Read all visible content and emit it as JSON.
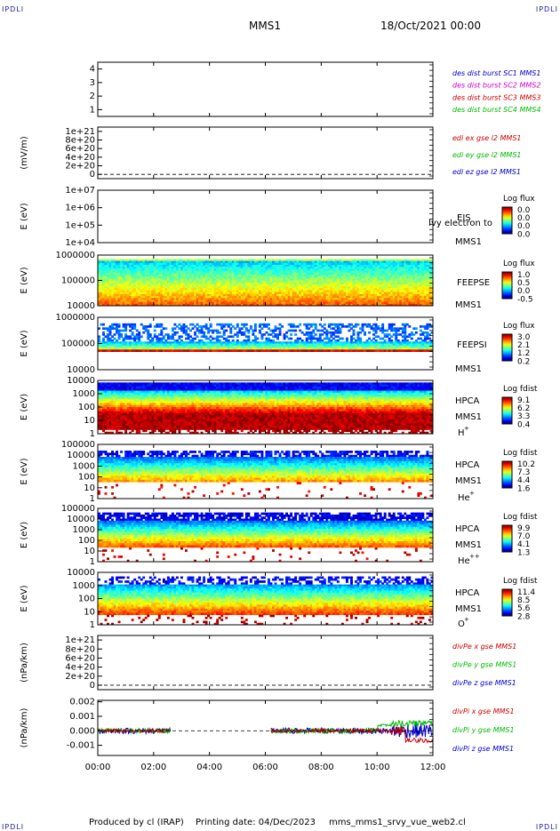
{
  "header": {
    "corner_tl": "IPDLI",
    "corner_tr": "IPDLI",
    "corner_bl": "IPDLI",
    "corner_br": "IPDLI",
    "mission": "MMS1",
    "datetime": "18/Oct/2021 00:00"
  },
  "footer": {
    "produced_by": "Produced by cl (IRAP)",
    "printing_date": "Printing date: 04/Dec/2023",
    "filename": "mms_mms1_srvy_vue_web2.cl"
  },
  "colors": {
    "blue": "#0000cc",
    "magenta": "#cc00cc",
    "red": "#cc0000",
    "green": "#00bb00"
  },
  "chart_data": [
    {
      "type": "line",
      "panel": 0,
      "ylabel": "",
      "yticks": [
        "1",
        "2",
        "3",
        "4"
      ],
      "ylim": [
        0.5,
        4.5
      ],
      "legend": [
        {
          "label": "des dist burst SC1 MMS1",
          "color": "#0000cc"
        },
        {
          "label": "des dist burst SC2 MMS2",
          "color": "#cc00cc"
        },
        {
          "label": "des dist burst SC3 MMS3",
          "color": "#cc0000"
        },
        {
          "label": "des dist burst SC4 MMS4",
          "color": "#00bb00"
        }
      ],
      "series": []
    },
    {
      "type": "line",
      "panel": 1,
      "ylabel": "(mV/m)",
      "yticks": [
        "0",
        "2e+20",
        "4e+20",
        "6e+20",
        "8e+20",
        "1e+21"
      ],
      "ylim": [
        -1e+20,
        1.1e+21
      ],
      "legend": [
        {
          "label": "edi ex gse l2 MMS1",
          "color": "#cc0000"
        },
        {
          "label": "edi ey gse l2 MMS1",
          "color": "#00bb00"
        },
        {
          "label": "edi ez gse l2 MMS1",
          "color": "#0000cc"
        }
      ],
      "zero_line": true
    },
    {
      "type": "heatmap",
      "panel": 2,
      "ylabel": "E (eV)",
      "yticks": [
        "1e+04",
        "1e+05",
        "1e+06",
        "1e+07"
      ],
      "ylog": true,
      "instrument": "EIS",
      "sc": "MMS1",
      "overlay": "Ivy electron to",
      "cbar_title": "Log flux",
      "cbar_ticks": [
        "0.0",
        "0.0",
        "0.0",
        "0.0"
      ],
      "coverage": []
    },
    {
      "type": "heatmap",
      "panel": 3,
      "ylabel": "E (eV)",
      "yticks": [
        "10000",
        "100000",
        "1000000"
      ],
      "ylog": true,
      "instrument": "FEEPSE",
      "sc": "MMS1",
      "cbar_title": "Log flux",
      "cbar_ticks": [
        "1.0",
        "0.5",
        "0.0",
        "-0.5"
      ],
      "coverage": [
        [
          0,
          12
        ]
      ]
    },
    {
      "type": "heatmap",
      "panel": 4,
      "ylabel": "E (eV)",
      "yticks": [
        "10000",
        "100000",
        "1000000"
      ],
      "ylog": true,
      "instrument": "FEEPSI",
      "sc": "MMS1",
      "cbar_title": "Log flux",
      "cbar_ticks": [
        "3.0",
        "2.1",
        "1.2",
        "0.2"
      ],
      "coverage": [
        [
          0,
          12
        ]
      ]
    },
    {
      "type": "heatmap",
      "panel": 5,
      "ylabel": "E (eV)",
      "yticks": [
        "1",
        "10",
        "100",
        "1000",
        "10000"
      ],
      "ylog": true,
      "instrument": "HPCA",
      "sc": "MMS1",
      "species": "H",
      "charge": "+",
      "cbar_title": "Log fdist",
      "cbar_ticks": [
        "9.1",
        "6.2",
        "3.3",
        "0.4"
      ],
      "coverage": [
        [
          0,
          12
        ]
      ]
    },
    {
      "type": "heatmap",
      "panel": 6,
      "ylabel": "E (eV)",
      "yticks": [
        "1",
        "10",
        "100",
        "1000",
        "10000",
        "100000"
      ],
      "ylog": true,
      "instrument": "HPCA",
      "sc": "MMS1",
      "species": "He",
      "charge": "+",
      "cbar_title": "Log fdist",
      "cbar_ticks": [
        "10.2",
        "7.3",
        "4.4",
        "1.6"
      ],
      "coverage": [
        [
          0,
          12
        ]
      ]
    },
    {
      "type": "heatmap",
      "panel": 7,
      "ylabel": "E (eV)",
      "yticks": [
        "1",
        "10",
        "100",
        "1000",
        "10000",
        "100000"
      ],
      "ylog": true,
      "instrument": "HPCA",
      "sc": "MMS1",
      "species": "He",
      "charge": "++",
      "cbar_title": "Log fdist",
      "cbar_ticks": [
        "9.9",
        "7.0",
        "4.1",
        "1.3"
      ],
      "coverage": [
        [
          0,
          12
        ]
      ]
    },
    {
      "type": "heatmap",
      "panel": 8,
      "ylabel": "E (eV)",
      "yticks": [
        "1",
        "10",
        "100",
        "1000",
        "10000"
      ],
      "ylog": true,
      "instrument": "HPCA",
      "sc": "MMS1",
      "species": "O",
      "charge": "+",
      "cbar_title": "Log fdist",
      "cbar_ticks": [
        "11.4",
        "8.5",
        "5.6",
        "2.8"
      ],
      "coverage": [
        [
          0,
          12
        ]
      ]
    },
    {
      "type": "line",
      "panel": 9,
      "ylabel": "(nPa/km)",
      "yticks": [
        "0",
        "2e+20",
        "4e+20",
        "6e+20",
        "8e+20",
        "1e+21"
      ],
      "ylim": [
        -1e+20,
        1.1e+21
      ],
      "legend": [
        {
          "label": "divPe x gse MMS1",
          "color": "#cc0000"
        },
        {
          "label": "divPe y gse MMS1",
          "color": "#00bb00"
        },
        {
          "label": "divPe z gse MMS1",
          "color": "#0000cc"
        }
      ],
      "zero_line": true
    },
    {
      "type": "line",
      "panel": 10,
      "ylabel": "(nPa/km)",
      "yticks": [
        "-0.001",
        "0.000",
        "0.001",
        "0.002"
      ],
      "ylim": [
        -0.0017,
        0.0021
      ],
      "legend": [
        {
          "label": "divPi x gse MMS1",
          "color": "#cc0000"
        },
        {
          "label": "divPi y gse MMS1",
          "color": "#00bb00"
        },
        {
          "label": "divPi z gse MMS1",
          "color": "#0000cc"
        }
      ],
      "zero_line": true,
      "coverage": [
        [
          0,
          2.6
        ],
        [
          6.2,
          12
        ]
      ],
      "noise_amplitude": 0.0002
    }
  ],
  "xaxis": {
    "ticks": [
      "00:00",
      "02:00",
      "04:00",
      "06:00",
      "08:00",
      "10:00",
      "12:00"
    ],
    "range_hours": [
      0,
      12
    ]
  }
}
